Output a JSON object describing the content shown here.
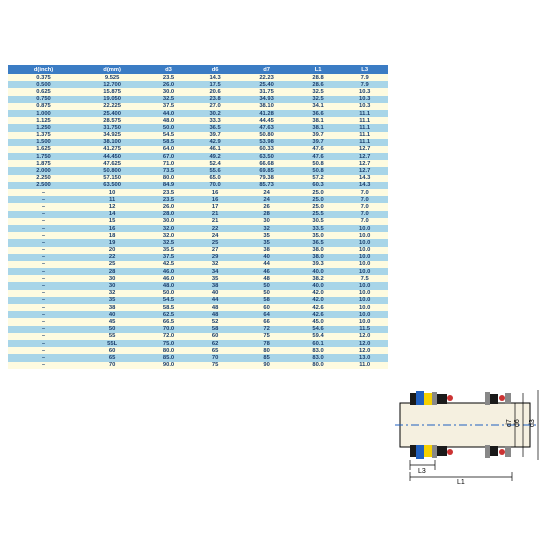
{
  "table": {
    "headers": [
      "d(inch)",
      "d(mm)",
      "d3",
      "d6",
      "d7",
      "L1",
      "L3"
    ],
    "header_bg": "#3b7cc4",
    "row_colors": {
      "even": "#fefbe0",
      "odd": "#a8d5e8"
    },
    "text_color": "#1a3d6b",
    "rows": [
      [
        "0.375",
        "9.525",
        "23.5",
        "14.3",
        "22.23",
        "28.8",
        "7.9"
      ],
      [
        "0.500",
        "12.700",
        "26.0",
        "17.5",
        "25.40",
        "28.6",
        "7.9"
      ],
      [
        "0.625",
        "15.875",
        "30.0",
        "20.6",
        "31.75",
        "32.5",
        "10.3"
      ],
      [
        "0.750",
        "19.050",
        "32.5",
        "23.8",
        "34.93",
        "32.5",
        "10.3"
      ],
      [
        "0.875",
        "22.225",
        "37.5",
        "27.0",
        "38.10",
        "34.1",
        "10.3"
      ],
      [
        "1.000",
        "25.400",
        "44.0",
        "30.2",
        "41.28",
        "36.6",
        "11.1"
      ],
      [
        "1.125",
        "28.575",
        "48.0",
        "33.3",
        "44.45",
        "38.1",
        "11.1"
      ],
      [
        "1.250",
        "31.750",
        "50.0",
        "36.5",
        "47.63",
        "38.1",
        "11.1"
      ],
      [
        "1.375",
        "34.925",
        "54.5",
        "39.7",
        "50.80",
        "39.7",
        "11.1"
      ],
      [
        "1.500",
        "38.100",
        "58.5",
        "42.9",
        "53.98",
        "39.7",
        "11.1"
      ],
      [
        "1.625",
        "41.275",
        "64.0",
        "46.1",
        "60.33",
        "47.6",
        "12.7"
      ],
      [
        "1.750",
        "44.450",
        "67.0",
        "49.2",
        "63.50",
        "47.6",
        "12.7"
      ],
      [
        "1.875",
        "47.625",
        "71.0",
        "52.4",
        "66.68",
        "50.8",
        "12.7"
      ],
      [
        "2.000",
        "50.800",
        "73.5",
        "55.6",
        "69.85",
        "50.8",
        "12.7"
      ],
      [
        "2.250",
        "57.150",
        "80.0",
        "65.0",
        "79.38",
        "57.2",
        "14.3"
      ],
      [
        "2.500",
        "63.500",
        "84.9",
        "70.0",
        "85.73",
        "60.3",
        "14.3"
      ],
      [
        "–",
        "10",
        "23.5",
        "16",
        "24",
        "25.0",
        "7.0"
      ],
      [
        "–",
        "11",
        "23.5",
        "16",
        "24",
        "25.0",
        "7.0"
      ],
      [
        "–",
        "12",
        "26.0",
        "17",
        "26",
        "25.0",
        "7.0"
      ],
      [
        "–",
        "14",
        "28.0",
        "21",
        "28",
        "25.5",
        "7.0"
      ],
      [
        "–",
        "15",
        "30.0",
        "21",
        "30",
        "30.5",
        "7.0"
      ],
      [
        "–",
        "16",
        "32.0",
        "22",
        "32",
        "33.5",
        "10.0"
      ],
      [
        "–",
        "18",
        "32.0",
        "24",
        "35",
        "35.0",
        "10.0"
      ],
      [
        "–",
        "19",
        "32.5",
        "25",
        "35",
        "36.5",
        "10.0"
      ],
      [
        "–",
        "20",
        "35.5",
        "27",
        "38",
        "38.0",
        "10.0"
      ],
      [
        "–",
        "22",
        "37.5",
        "29",
        "40",
        "38.0",
        "10.0"
      ],
      [
        "–",
        "25",
        "42.5",
        "32",
        "44",
        "39.3",
        "10.0"
      ],
      [
        "–",
        "28",
        "46.0",
        "34",
        "46",
        "40.0",
        "10.0"
      ],
      [
        "–",
        "30",
        "46.0",
        "35",
        "48",
        "38.2",
        "7.5"
      ],
      [
        "–",
        "30",
        "48.0",
        "38",
        "50",
        "40.0",
        "10.0"
      ],
      [
        "–",
        "32",
        "50.0",
        "40",
        "50",
        "42.0",
        "10.0"
      ],
      [
        "–",
        "35",
        "54.5",
        "44",
        "58",
        "42.0",
        "10.0"
      ],
      [
        "–",
        "38",
        "58.5",
        "48",
        "60",
        "42.6",
        "10.0"
      ],
      [
        "–",
        "40",
        "62.5",
        "48",
        "64",
        "42.6",
        "10.0"
      ],
      [
        "–",
        "45",
        "66.5",
        "52",
        "66",
        "45.0",
        "10.0"
      ],
      [
        "–",
        "50",
        "70.0",
        "58",
        "72",
        "54.6",
        "11.5"
      ],
      [
        "–",
        "55",
        "72.0",
        "60",
        "75",
        "59.4",
        "12.0"
      ],
      [
        "–",
        "55L",
        "75.0",
        "62",
        "78",
        "60.1",
        "12.0"
      ],
      [
        "–",
        "60",
        "80.0",
        "65",
        "80",
        "83.0",
        "12.0"
      ],
      [
        "–",
        "65",
        "85.0",
        "70",
        "85",
        "83.0",
        "13.0"
      ],
      [
        "–",
        "70",
        "90.0",
        "75",
        "90",
        "80.0",
        "11.0"
      ]
    ]
  },
  "diagram": {
    "labels": {
      "d7": "d7",
      "d6": "d6",
      "d3": "d3",
      "L3": "L3",
      "L1": "L1"
    },
    "colors": {
      "shaft": "#f5f0e0",
      "outline": "#000000",
      "center": "#2060c0",
      "blue": "#2060c0",
      "yellow": "#f5d000",
      "black": "#1a1a1a",
      "gray": "#888888",
      "red": "#cc3333"
    }
  }
}
